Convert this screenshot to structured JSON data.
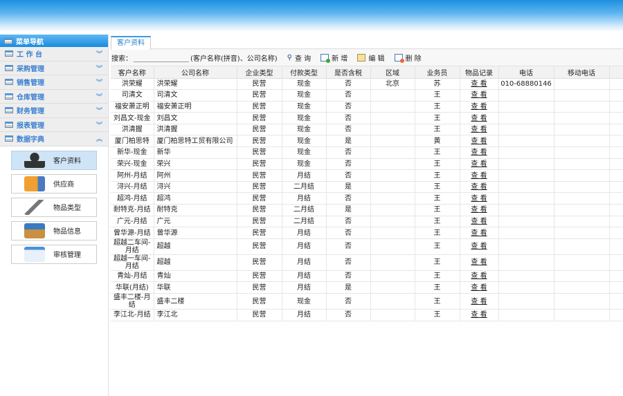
{
  "sidebar": {
    "title": "菜单导航",
    "items": [
      {
        "label": "工 作 台",
        "expanded": false
      },
      {
        "label": "采购管理",
        "expanded": false
      },
      {
        "label": "销售管理",
        "expanded": false
      },
      {
        "label": "仓库管理",
        "expanded": false
      },
      {
        "label": "财务管理",
        "expanded": false
      },
      {
        "label": "报表管理",
        "expanded": false
      },
      {
        "label": "数据字典",
        "expanded": true
      }
    ],
    "subitems": [
      {
        "label": "客户资料",
        "icon": "user-icon",
        "active": true
      },
      {
        "label": "供应商",
        "icon": "truck-icon"
      },
      {
        "label": "物品类型",
        "icon": "hammer-icon"
      },
      {
        "label": "物品信息",
        "icon": "box-icon"
      },
      {
        "label": "审核管理",
        "icon": "document-key-icon"
      }
    ]
  },
  "tab": {
    "label": "客户资料"
  },
  "toolbar": {
    "search_label": "搜索：",
    "search_value": "",
    "search_hint": "(客户名称(拼音)、公司名称)",
    "query": "查 询",
    "add": "新 增",
    "edit": "编 辑",
    "delete": "删 除"
  },
  "table": {
    "columns": [
      "客户名称",
      "公司名称",
      "企业类型",
      "付款类型",
      "是否含税",
      "区域",
      "业务员",
      "物品记录",
      "电话",
      "移动电话",
      ""
    ],
    "rows": [
      [
        "洪荣耀",
        "洪荣耀",
        "民营",
        "现金",
        "否",
        "北京",
        "苏",
        "查 看",
        "010-68880146",
        ""
      ],
      [
        "司清文",
        "司清文",
        "民营",
        "现金",
        "否",
        "",
        "王",
        "查 看",
        "",
        ""
      ],
      [
        "福安萧正明",
        "福安萧正明",
        "民营",
        "现金",
        "否",
        "",
        "王",
        "查 看",
        "",
        ""
      ],
      [
        "刘昌文-现金",
        "刘昌文",
        "民营",
        "现金",
        "否",
        "",
        "王",
        "查 看",
        "",
        ""
      ],
      [
        "洪清握",
        "洪清握",
        "民营",
        "现金",
        "否",
        "",
        "王",
        "查 看",
        "",
        ""
      ],
      [
        "厦门柏思特",
        "厦门柏思特工贸有限公司",
        "民营",
        "现金",
        "是",
        "",
        "黄",
        "查 看",
        "",
        ""
      ],
      [
        "新华-现金",
        "新华",
        "民营",
        "现金",
        "否",
        "",
        "王",
        "查 看",
        "",
        ""
      ],
      [
        "荣兴-现金",
        "荣兴",
        "民营",
        "现金",
        "否",
        "",
        "王",
        "查 看",
        "",
        ""
      ],
      [
        "阿州-月结",
        "阿州",
        "民营",
        "月结",
        "否",
        "",
        "王",
        "查 看",
        "",
        ""
      ],
      [
        "浔兴-月结",
        "浔兴",
        "民营",
        "二月结",
        "是",
        "",
        "王",
        "查 看",
        "",
        ""
      ],
      [
        "超鸿-月结",
        "超鸿",
        "民营",
        "月结",
        "否",
        "",
        "王",
        "查 看",
        "",
        ""
      ],
      [
        "耐特克-月结",
        "耐特克",
        "民营",
        "二月结",
        "是",
        "",
        "王",
        "查 看",
        "",
        ""
      ],
      [
        "广元-月结",
        "广元",
        "民营",
        "二月结",
        "否",
        "",
        "王",
        "查 看",
        "",
        ""
      ],
      [
        "曾华源-月结",
        "曾华源",
        "民营",
        "月结",
        "否",
        "",
        "王",
        "查 看",
        "",
        ""
      ],
      [
        "超越二车间-月结",
        "超越",
        "民营",
        "月结",
        "否",
        "",
        "王",
        "查 看",
        "",
        ""
      ],
      [
        "超越一车间-月结",
        "超越",
        "民营",
        "月结",
        "否",
        "",
        "王",
        "查 看",
        "",
        ""
      ],
      [
        "青灿-月结",
        "青灿",
        "民营",
        "月结",
        "否",
        "",
        "王",
        "查 看",
        "",
        ""
      ],
      [
        "华联(月结)",
        "华联",
        "民营",
        "月结",
        "是",
        "",
        "王",
        "查 看",
        "",
        ""
      ],
      [
        "盛丰二楼-月结",
        "盛丰二楼",
        "民营",
        "现金",
        "否",
        "",
        "王",
        "查 看",
        "",
        ""
      ],
      [
        "李江北-月结",
        "李江北",
        "民营",
        "月结",
        "否",
        "",
        "王",
        "查 看",
        "",
        ""
      ]
    ]
  },
  "colors": {
    "accent": "#1b8ae0",
    "menu_text": "#3a7fd0",
    "active_sub": "#cfe4f7"
  }
}
